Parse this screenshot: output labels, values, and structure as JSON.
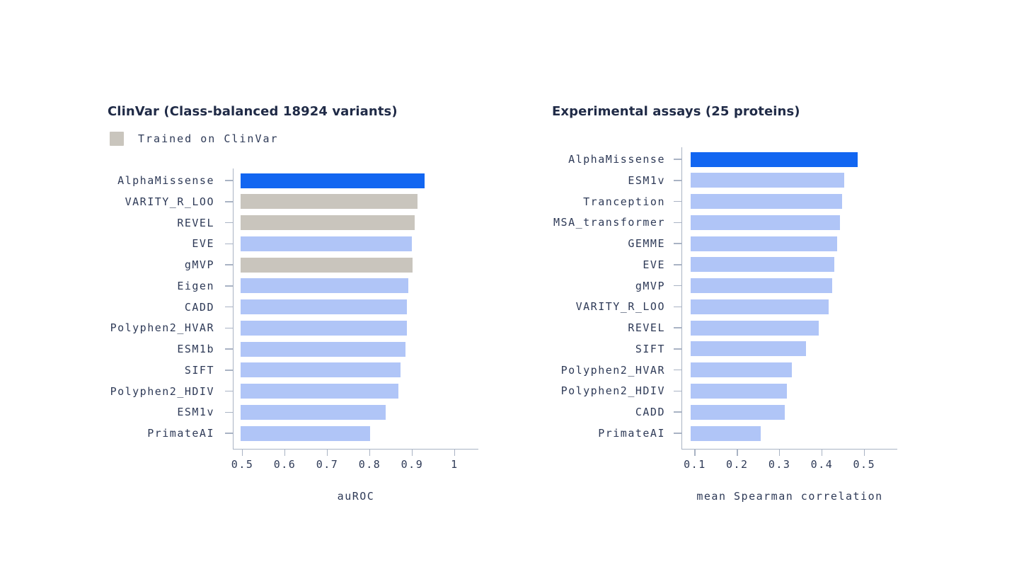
{
  "page": {
    "background": "#ffffff"
  },
  "colors": {
    "accent_blue": "#1266f1",
    "light_blue": "#b0c5f7",
    "trained_gray": "#c9c5bd",
    "axis_line": "#a9b3c4",
    "title_text": "#202b47",
    "label_text": "#2e3a57"
  },
  "chart_data": [
    {
      "type": "bar",
      "orientation": "horizontal",
      "title": "ClinVar (Class-balanced 18924 variants)",
      "xlabel": "auROC",
      "legend": [
        {
          "label": "Trained on ClinVar",
          "color_key": "trained_gray"
        }
      ],
      "categories": [
        "AlphaMissense",
        "VARITY_R_LOO",
        "REVEL",
        "EVE",
        "gMVP",
        "Eigen",
        "CADD",
        "Polyphen2_HVAR",
        "ESM1b",
        "SIFT",
        "Polyphen2_HDIV",
        "ESM1v",
        "PrimateAI"
      ],
      "values": [
        0.929,
        0.912,
        0.906,
        0.899,
        0.901,
        0.891,
        0.888,
        0.887,
        0.885,
        0.873,
        0.867,
        0.838,
        0.801
      ],
      "bar_color_keys": [
        "accent_blue",
        "trained_gray",
        "trained_gray",
        "light_blue",
        "trained_gray",
        "light_blue",
        "light_blue",
        "light_blue",
        "light_blue",
        "light_blue",
        "light_blue",
        "light_blue",
        "light_blue"
      ],
      "x_ticks": [
        0.5,
        0.6,
        0.7,
        0.8,
        0.9,
        1
      ],
      "x_tick_labels": [
        "0.5",
        "0.6",
        "0.7",
        "0.8",
        "0.9",
        "1"
      ],
      "xlim": [
        0.479,
        1.056
      ],
      "bar_base": 0.495,
      "grid": false,
      "legend_position": "top-left"
    },
    {
      "type": "bar",
      "orientation": "horizontal",
      "title": "Experimental assays (25 proteins)",
      "xlabel": "mean Spearman correlation",
      "legend": [],
      "categories": [
        "AlphaMissense",
        "ESM1v",
        "Tranception",
        "MSA_transformer",
        "GEMME",
        "EVE",
        "gMVP",
        "VARITY_R_LOO",
        "REVEL",
        "SIFT",
        "Polyphen2_HVAR",
        "Polyphen2_HDIV",
        "CADD",
        "PrimateAI"
      ],
      "values": [
        0.485,
        0.452,
        0.447,
        0.442,
        0.436,
        0.43,
        0.425,
        0.416,
        0.392,
        0.362,
        0.329,
        0.318,
        0.312,
        0.255
      ],
      "bar_color_keys": [
        "accent_blue",
        "light_blue",
        "light_blue",
        "light_blue",
        "light_blue",
        "light_blue",
        "light_blue",
        "light_blue",
        "light_blue",
        "light_blue",
        "light_blue",
        "light_blue",
        "light_blue",
        "light_blue"
      ],
      "x_ticks": [
        0.1,
        0.2,
        0.3,
        0.4,
        0.5
      ],
      "x_tick_labels": [
        "0.1",
        "0.2",
        "0.3",
        "0.4",
        "0.5"
      ],
      "xlim": [
        0.07,
        0.578
      ],
      "bar_base": 0.0905,
      "grid": false,
      "legend_position": "none"
    }
  ]
}
